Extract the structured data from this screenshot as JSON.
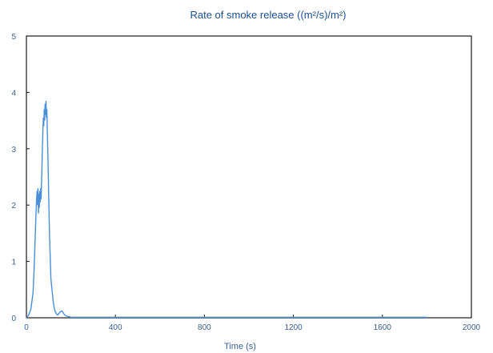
{
  "chart_data": {
    "type": "line",
    "title": "Rate of smoke release ((m²/s)/m²)",
    "xlabel": "Time (s)",
    "ylabel": "",
    "xlim": [
      0,
      2000
    ],
    "ylim": [
      0,
      5
    ],
    "x_ticks": [
      "0",
      "400",
      "800",
      "1200",
      "1600",
      "2000"
    ],
    "y_ticks": [
      "0",
      "1",
      "2",
      "3",
      "4",
      "5"
    ],
    "grid": false,
    "line_color": "#4a90d9",
    "series": [
      {
        "x": [
          0,
          10,
          20,
          30,
          35,
          40,
          45,
          48,
          50,
          52,
          54,
          56,
          58,
          60,
          62,
          64,
          66,
          68,
          70,
          72,
          74,
          76,
          78,
          80,
          82,
          84,
          86,
          88,
          90,
          92,
          94,
          96,
          98,
          100,
          102,
          104,
          106,
          108,
          110,
          115,
          120,
          125,
          130,
          135,
          140,
          145,
          150,
          160,
          170,
          180,
          190,
          200,
          250,
          300,
          400,
          600,
          800,
          1000,
          1200,
          1400,
          1600,
          1800
        ],
        "y": [
          0.0,
          0.05,
          0.15,
          0.45,
          0.9,
          1.5,
          2.05,
          2.25,
          2.0,
          2.3,
          1.85,
          2.2,
          1.95,
          2.25,
          2.05,
          2.3,
          2.1,
          2.4,
          2.7,
          3.05,
          3.3,
          3.55,
          3.4,
          3.7,
          3.5,
          3.8,
          3.6,
          3.85,
          3.55,
          3.7,
          3.3,
          3.0,
          2.6,
          2.2,
          1.8,
          1.45,
          1.2,
          0.95,
          0.7,
          0.5,
          0.3,
          0.18,
          0.1,
          0.07,
          0.05,
          0.07,
          0.1,
          0.12,
          0.06,
          0.03,
          0.02,
          0.01,
          0.01,
          0.01,
          0.01,
          0.01,
          0.01,
          0.01,
          0.01,
          0.01,
          0.01,
          0.01
        ]
      }
    ]
  }
}
